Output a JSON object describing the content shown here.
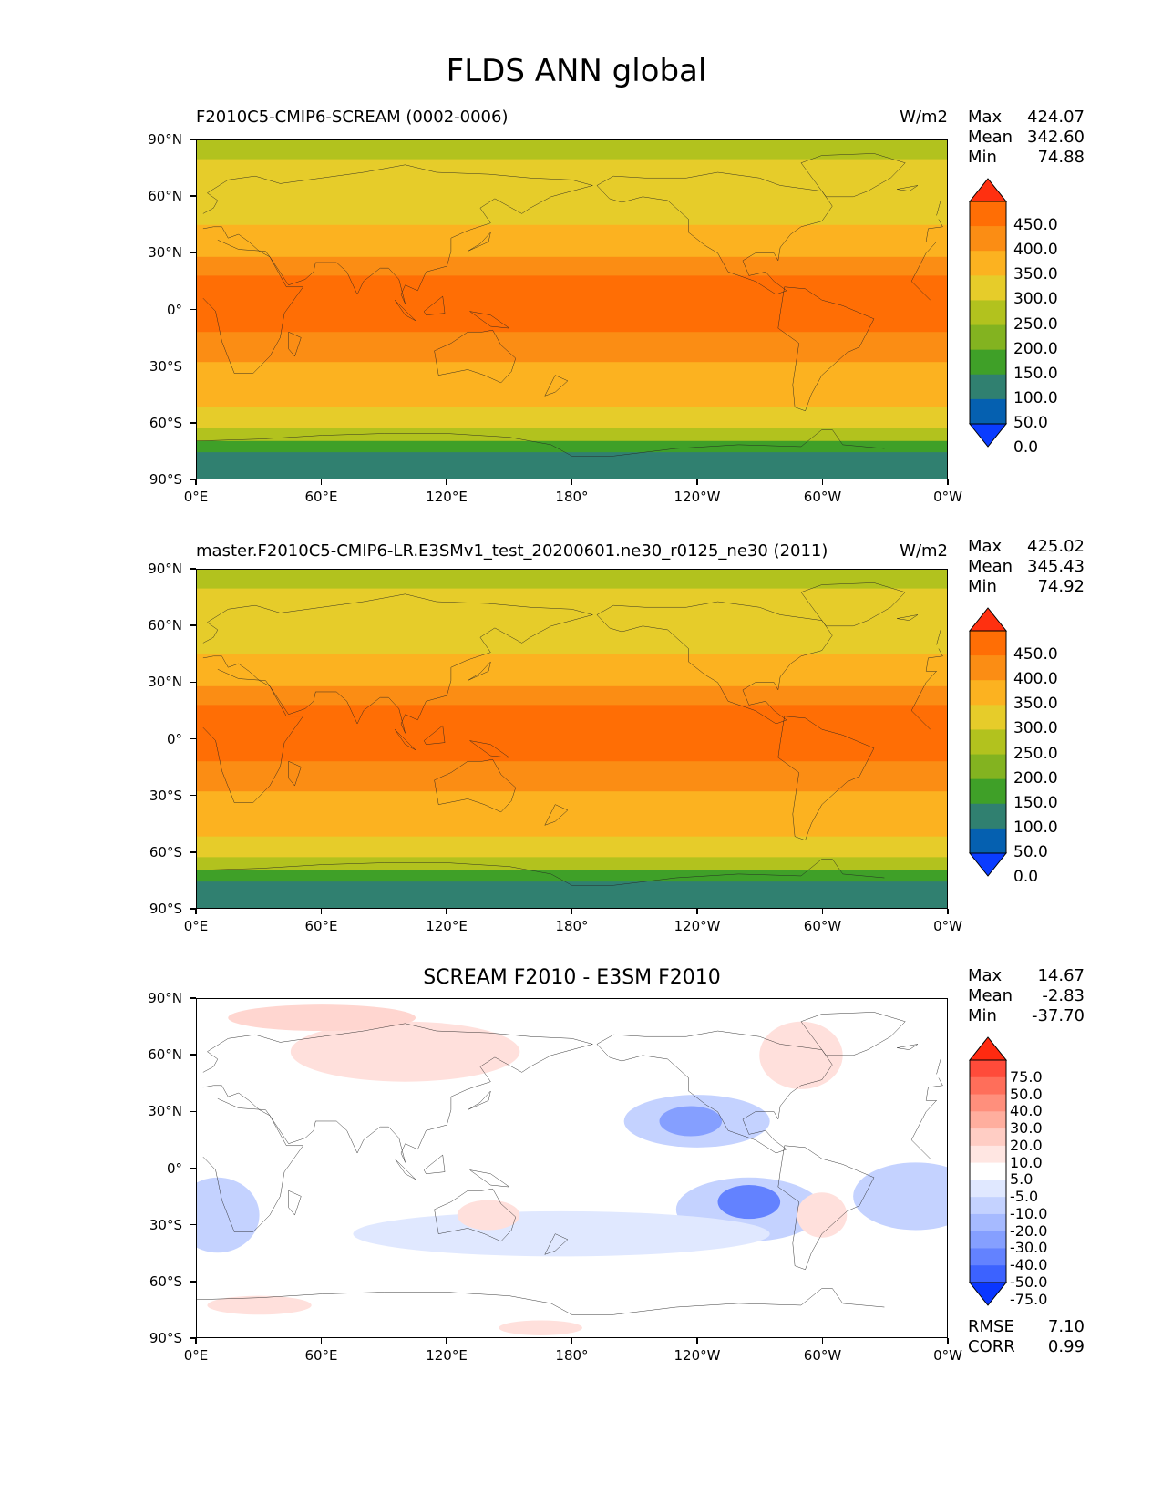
{
  "page_title": "FLDS ANN global",
  "chart_data": [
    {
      "type": "heatmap",
      "title_left": "F2010C5-CMIP6-SCREAM (0002-0006)",
      "units": "W/m2",
      "stats": {
        "max_label": "Max",
        "max": "424.07",
        "mean_label": "Mean",
        "mean": "342.60",
        "min_label": "Min",
        "min": "74.88"
      },
      "xticks": [
        "0°E",
        "60°E",
        "120°E",
        "180°",
        "120°W",
        "60°W",
        "0°W"
      ],
      "yticks": [
        "90°N",
        "60°N",
        "30°N",
        "0°",
        "30°S",
        "60°S",
        "90°S"
      ],
      "colorbar": {
        "labels": [
          "450.0",
          "400.0",
          "350.0",
          "300.0",
          "250.0",
          "200.0",
          "150.0",
          "100.0",
          "50.0",
          "0.0"
        ],
        "colors": [
          "#ff3010",
          "#ff6e05",
          "#fb8d14",
          "#fcb220",
          "#e6cc2a",
          "#b2c21e",
          "#83b320",
          "#3fa028",
          "#308070",
          "#0560b0",
          "#0a3cff"
        ]
      },
      "bands": [
        {
          "lat": [
            90,
            80
          ],
          "color": "#b2c21e"
        },
        {
          "lat": [
            80,
            62
          ],
          "color": "#e6cc2a"
        },
        {
          "lat": [
            62,
            45
          ],
          "color": "#e6cc2a"
        },
        {
          "lat": [
            45,
            28
          ],
          "color": "#fcb220"
        },
        {
          "lat": [
            28,
            18
          ],
          "color": "#fb8d14"
        },
        {
          "lat": [
            18,
            -12
          ],
          "color": "#ff6e05"
        },
        {
          "lat": [
            -12,
            -28
          ],
          "color": "#fb8d14"
        },
        {
          "lat": [
            -28,
            -52
          ],
          "color": "#fcb220"
        },
        {
          "lat": [
            -52,
            -63
          ],
          "color": "#e6cc2a"
        },
        {
          "lat": [
            -63,
            -70
          ],
          "color": "#b2c21e"
        },
        {
          "lat": [
            -70,
            -76
          ],
          "color": "#3fa028"
        },
        {
          "lat": [
            -76,
            -90
          ],
          "color": "#308070"
        }
      ]
    },
    {
      "type": "heatmap",
      "title_left": "master.F2010C5-CMIP6-LR.E3SMv1_test_20200601.ne30_r0125_ne30 (2011)",
      "units": "W/m2",
      "stats": {
        "max_label": "Max",
        "max": "425.02",
        "mean_label": "Mean",
        "mean": "345.43",
        "min_label": "Min",
        "min": "74.92"
      },
      "xticks": [
        "0°E",
        "60°E",
        "120°E",
        "180°",
        "120°W",
        "60°W",
        "0°W"
      ],
      "yticks": [
        "90°N",
        "60°N",
        "30°N",
        "0°",
        "30°S",
        "60°S",
        "90°S"
      ],
      "colorbar": {
        "labels": [
          "450.0",
          "400.0",
          "350.0",
          "300.0",
          "250.0",
          "200.0",
          "150.0",
          "100.0",
          "50.0",
          "0.0"
        ],
        "colors": [
          "#ff3010",
          "#ff6e05",
          "#fb8d14",
          "#fcb220",
          "#e6cc2a",
          "#b2c21e",
          "#83b320",
          "#3fa028",
          "#308070",
          "#0560b0",
          "#0a3cff"
        ]
      },
      "bands": [
        {
          "lat": [
            90,
            80
          ],
          "color": "#b2c21e"
        },
        {
          "lat": [
            80,
            62
          ],
          "color": "#e6cc2a"
        },
        {
          "lat": [
            62,
            45
          ],
          "color": "#e6cc2a"
        },
        {
          "lat": [
            45,
            28
          ],
          "color": "#fcb220"
        },
        {
          "lat": [
            28,
            18
          ],
          "color": "#fb8d14"
        },
        {
          "lat": [
            18,
            -12
          ],
          "color": "#ff6e05"
        },
        {
          "lat": [
            -12,
            -28
          ],
          "color": "#fb8d14"
        },
        {
          "lat": [
            -28,
            -52
          ],
          "color": "#fcb220"
        },
        {
          "lat": [
            -52,
            -63
          ],
          "color": "#e6cc2a"
        },
        {
          "lat": [
            -63,
            -70
          ],
          "color": "#b2c21e"
        },
        {
          "lat": [
            -70,
            -76
          ],
          "color": "#3fa028"
        },
        {
          "lat": [
            -76,
            -90
          ],
          "color": "#308070"
        }
      ]
    },
    {
      "type": "heatmap",
      "title": "SCREAM F2010 - E3SM F2010",
      "stats": {
        "max_label": "Max",
        "max": "14.67",
        "mean_label": "Mean",
        "mean": "-2.83",
        "min_label": "Min",
        "min": "-37.70"
      },
      "metrics": {
        "rmse_label": "RMSE",
        "rmse": "7.10",
        "corr_label": "CORR",
        "corr": "0.99"
      },
      "xticks": [
        "0°E",
        "60°E",
        "120°E",
        "180°",
        "120°W",
        "60°W",
        "0°W"
      ],
      "yticks": [
        "90°N",
        "60°N",
        "30°N",
        "0°",
        "30°S",
        "60°S",
        "90°S"
      ],
      "colorbar": {
        "labels": [
          "75.0",
          "50.0",
          "40.0",
          "30.0",
          "20.0",
          "10.0",
          "5.0",
          "-5.0",
          "-10.0",
          "-20.0",
          "-30.0",
          "-40.0",
          "-50.0",
          "-75.0"
        ],
        "colors": [
          "#ff2a10",
          "#ff4b3a",
          "#ff6e5a",
          "#ff8f7c",
          "#ffae9e",
          "#ffcdc4",
          "#ffe6e2",
          "#ffffff",
          "#e0e8ff",
          "#c4d2ff",
          "#a6baff",
          "#859fff",
          "#6382ff",
          "#3c62ff",
          "#0a36ff"
        ]
      },
      "blobs": [
        {
          "lon": 100,
          "lat": 62,
          "rlon": 55,
          "rlat": 16,
          "color": "#ffe0dc"
        },
        {
          "lon": 60,
          "lat": 80,
          "rlon": 45,
          "rlat": 7,
          "color": "#ffd6d0"
        },
        {
          "lon": 240,
          "lat": 25,
          "rlon": 35,
          "rlat": 14,
          "color": "#c4d2ff"
        },
        {
          "lon": 237,
          "lat": 25,
          "rlon": 15,
          "rlat": 8,
          "color": "#859fff"
        },
        {
          "lon": 265,
          "lat": -22,
          "rlon": 35,
          "rlat": 17,
          "color": "#c4d2ff"
        },
        {
          "lon": 265,
          "lat": -18,
          "rlon": 15,
          "rlat": 9,
          "color": "#6382ff"
        },
        {
          "lon": 175,
          "lat": -35,
          "rlon": 100,
          "rlat": 12,
          "color": "#e0e8ff"
        },
        {
          "lon": 345,
          "lat": -15,
          "rlon": 30,
          "rlat": 18,
          "color": "#c4d2ff"
        },
        {
          "lon": 10,
          "lat": -25,
          "rlon": 20,
          "rlat": 20,
          "color": "#c4d2ff"
        },
        {
          "lon": 140,
          "lat": -25,
          "rlon": 15,
          "rlat": 8,
          "color": "#ffe0dc"
        },
        {
          "lon": 300,
          "lat": -25,
          "rlon": 12,
          "rlat": 12,
          "color": "#ffe0dc"
        },
        {
          "lon": 290,
          "lat": 60,
          "rlon": 20,
          "rlat": 18,
          "color": "#ffe0dc"
        },
        {
          "lon": 165,
          "lat": -85,
          "rlon": 20,
          "rlat": 4,
          "color": "#ffe0dc"
        },
        {
          "lon": 30,
          "lat": -73,
          "rlon": 25,
          "rlat": 5,
          "color": "#ffe0dc"
        }
      ]
    }
  ]
}
